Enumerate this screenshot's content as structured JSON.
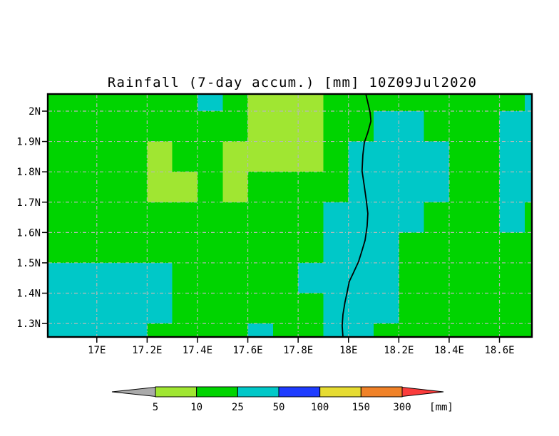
{
  "title": "Rainfall (7-day accum.) [mm] 10Z09Jul2020",
  "colors": {
    "background": "#ffffff",
    "frame": "#000000",
    "grid": "#b8b8b8",
    "border_line": "#000000",
    "category_fills": {
      "L": "#a0e632",
      "G": "#00d400",
      "C": "#00c8c8"
    }
  },
  "chart_data": {
    "type": "heatmap",
    "title": "Rainfall (7-day accum.) [mm] 10Z09Jul2020",
    "units": "mm",
    "lon_range": [
      16.808,
      18.726
    ],
    "lat_range": [
      1.258,
      2.054
    ],
    "grid_on": true,
    "lon_origin": 16.8,
    "cell_deg": 0.1,
    "n_cols": 20,
    "category_values": {
      "L": "5-10 mm",
      "G": "10-25 mm",
      "C": "25-50 mm"
    },
    "rows": [
      {
        "lat_top": 2.054,
        "lat_bot": 2.0,
        "cells": "GGGGGGCGLLLGGGGGGGGC"
      },
      {
        "lat_top": 2.0,
        "lat_bot": 1.9,
        "cells": "GGGGGGGGLLLGGCCGGGCC"
      },
      {
        "lat_top": 1.9,
        "lat_bot": 1.8,
        "cells": "GGGGLGGLLLLGCCCCGGCC"
      },
      {
        "lat_top": 1.8,
        "lat_bot": 1.7,
        "cells": "GGGGLLGLGGGGCCCCGGCC"
      },
      {
        "lat_top": 1.7,
        "lat_bot": 1.6,
        "cells": "GGGGGGGGGGGCCCCGGGCG"
      },
      {
        "lat_top": 1.6,
        "lat_bot": 1.5,
        "cells": "GGGGGGGGGGGCCCGGGGGG"
      },
      {
        "lat_top": 1.5,
        "lat_bot": 1.4,
        "cells": "CCCCCGGGGGCCCCGGGGGG"
      },
      {
        "lat_top": 1.4,
        "lat_bot": 1.3,
        "cells": "CCCCCGGGGGGCCCGGGGGG"
      },
      {
        "lat_top": 1.3,
        "lat_bot": 1.258,
        "cells": "CCCCGGGGCGGCCGGGGGGG"
      }
    ],
    "x_ticks": [
      {
        "label": "17E",
        "lon": 17.0
      },
      {
        "label": "17.2E",
        "lon": 17.2
      },
      {
        "label": "17.4E",
        "lon": 17.4
      },
      {
        "label": "17.6E",
        "lon": 17.6
      },
      {
        "label": "17.8E",
        "lon": 17.8
      },
      {
        "label": "18E",
        "lon": 18.0
      },
      {
        "label": "18.2E",
        "lon": 18.2
      },
      {
        "label": "18.4E",
        "lon": 18.4
      },
      {
        "label": "18.6E",
        "lon": 18.6
      }
    ],
    "y_ticks": [
      {
        "label": "2N",
        "lat": 2.0
      },
      {
        "label": "1.9N",
        "lat": 1.9
      },
      {
        "label": "1.8N",
        "lat": 1.8
      },
      {
        "label": "1.7N",
        "lat": 1.7
      },
      {
        "label": "1.6N",
        "lat": 1.6
      },
      {
        "label": "1.5N",
        "lat": 1.5
      },
      {
        "label": "1.4N",
        "lat": 1.4
      },
      {
        "label": "1.3N",
        "lat": 1.3
      }
    ],
    "border_line_lonlat": [
      [
        18.069,
        2.056
      ],
      [
        18.077,
        2.028
      ],
      [
        18.086,
        1.995
      ],
      [
        18.089,
        1.967
      ],
      [
        18.077,
        1.93
      ],
      [
        18.063,
        1.897
      ],
      [
        18.057,
        1.855
      ],
      [
        18.054,
        1.803
      ],
      [
        18.063,
        1.752
      ],
      [
        18.071,
        1.705
      ],
      [
        18.077,
        1.663
      ],
      [
        18.074,
        1.621
      ],
      [
        18.066,
        1.574
      ],
      [
        18.054,
        1.541
      ],
      [
        18.04,
        1.504
      ],
      [
        18.02,
        1.468
      ],
      [
        18.003,
        1.438
      ],
      [
        17.995,
        1.405
      ],
      [
        17.986,
        1.37
      ],
      [
        17.978,
        1.33
      ],
      [
        17.975,
        1.293
      ],
      [
        17.978,
        1.256
      ]
    ],
    "legend": {
      "labels": [
        "5",
        "10",
        "25",
        "50",
        "100",
        "150",
        "300"
      ],
      "unit_label": "[mm]",
      "segment_colors": [
        "#a0e632",
        "#00d400",
        "#00c8c8",
        "#1e3cff",
        "#e6dc32",
        "#f08228"
      ],
      "below_color": "#aaaaaa",
      "above_color": "#fa3c3c"
    }
  }
}
